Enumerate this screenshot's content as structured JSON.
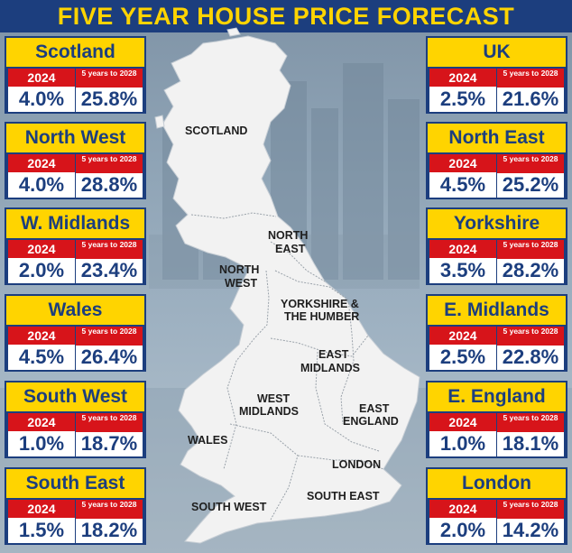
{
  "title": "FIVE YEAR HOUSE PRICE FORECAST",
  "colors": {
    "navy": "#1c3e7e",
    "yellow": "#ffd400",
    "red": "#d7141a",
    "map_fill": "#f2f2f2"
  },
  "left_cards": [
    {
      "region": "Scotland",
      "year_label": "2024",
      "span_label": "5 years to 2028",
      "year_value": "4.0%",
      "span_value": "25.8%"
    },
    {
      "region": "North West",
      "year_label": "2024",
      "span_label": "5 years to 2028",
      "year_value": "4.0%",
      "span_value": "28.8%"
    },
    {
      "region": "W. Midlands",
      "year_label": "2024",
      "span_label": "5 years to 2028",
      "year_value": "2.0%",
      "span_value": "23.4%"
    },
    {
      "region": "Wales",
      "year_label": "2024",
      "span_label": "5 years to 2028",
      "year_value": "4.5%",
      "span_value": "26.4%"
    },
    {
      "region": "South West",
      "year_label": "2024",
      "span_label": "5 years to 2028",
      "year_value": "1.0%",
      "span_value": "18.7%"
    },
    {
      "region": "South East",
      "year_label": "2024",
      "span_label": "5 years to 2028",
      "year_value": "1.5%",
      "span_value": "18.2%"
    }
  ],
  "right_cards": [
    {
      "region": "UK",
      "year_label": "2024",
      "span_label": "5 years to 2028",
      "year_value": "2.5%",
      "span_value": "21.6%"
    },
    {
      "region": "North East",
      "year_label": "2024",
      "span_label": "5 years to 2028",
      "year_value": "4.5%",
      "span_value": "25.2%"
    },
    {
      "region": "Yorkshire",
      "year_label": "2024",
      "span_label": "5 years to 2028",
      "year_value": "3.5%",
      "span_value": "28.2%"
    },
    {
      "region": "E. Midlands",
      "year_label": "2024",
      "span_label": "5 years to 2028",
      "year_value": "2.5%",
      "span_value": "22.8%"
    },
    {
      "region": "E. England",
      "year_label": "2024",
      "span_label": "5 years to 2028",
      "year_value": "1.0%",
      "span_value": "18.1%"
    },
    {
      "region": "London",
      "year_label": "2024",
      "span_label": "5 years to 2028",
      "year_value": "2.0%",
      "span_value": "14.2%"
    }
  ],
  "map_labels": {
    "scotland": "SCOTLAND",
    "north_east_1": "NORTH",
    "north_east_2": "EAST",
    "north_west_1": "NORTH",
    "north_west_2": "WEST",
    "yorkshire_1": "YORKSHIRE &",
    "yorkshire_2": "THE HUMBER",
    "east_midlands_1": "EAST",
    "east_midlands_2": "MIDLANDS",
    "west_midlands_1": "WEST",
    "west_midlands_2": "MIDLANDS",
    "east_england_1": "EAST",
    "east_england_2": "ENGLAND",
    "wales": "WALES",
    "london": "LONDON",
    "south_west": "SOUTH WEST",
    "south_east": "SOUTH EAST"
  }
}
